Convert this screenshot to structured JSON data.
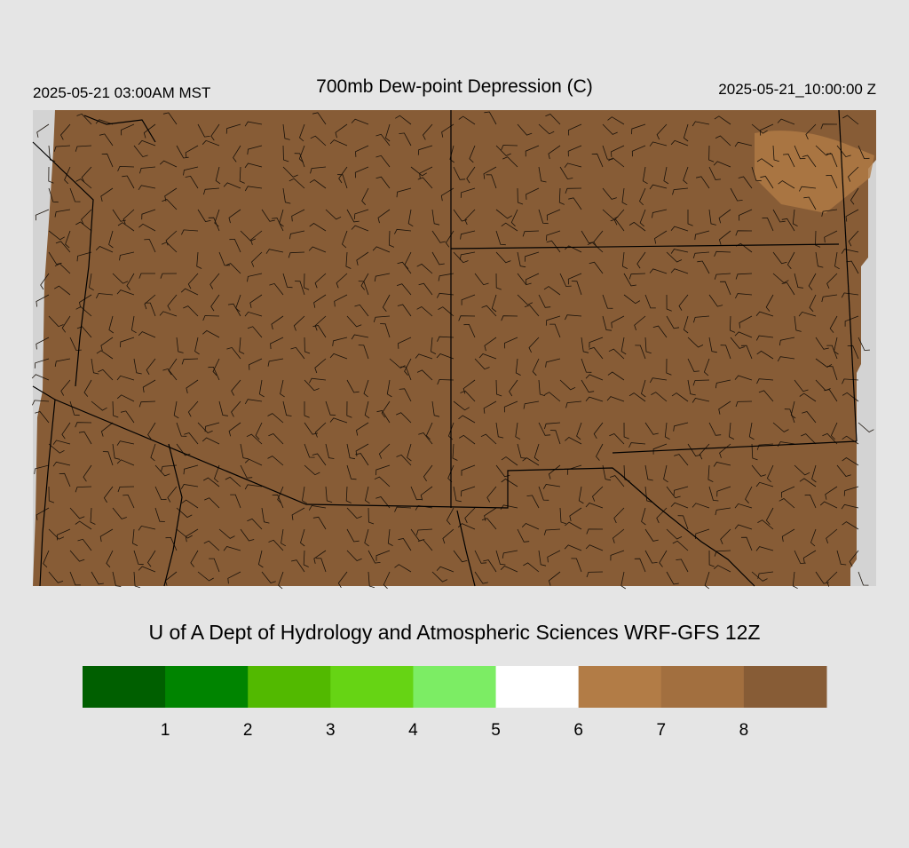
{
  "header": {
    "local_time": "2025-05-21 03:00AM MST",
    "title": "700mb Dew-point Depression (C)",
    "valid_time": "2025-05-21_10:00:00 Z"
  },
  "credit": "U of A Dept of Hydrology and Atmospheric Sciences WRF-GFS 12Z",
  "colorbar": {
    "colors": [
      "#005f00",
      "#008400",
      "#52b900",
      "#66d414",
      "#7ced64",
      "#ffffff",
      "#b27c46",
      "#a26f3f",
      "#875c36"
    ],
    "ticks": [
      1,
      2,
      3,
      4,
      5,
      6,
      7,
      8
    ]
  }
}
